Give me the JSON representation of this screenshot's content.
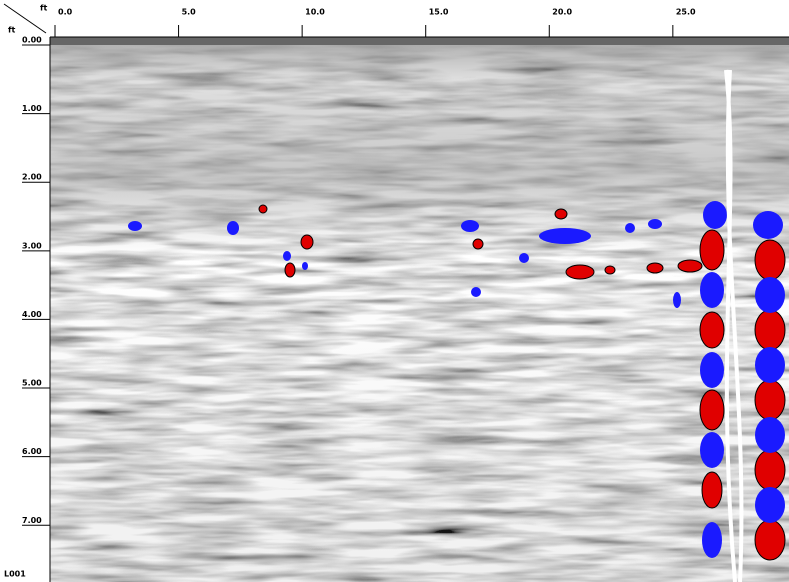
{
  "chart_data": {
    "type": "radargram",
    "x_unit": "ft",
    "y_unit": "ft",
    "line_label": "L001",
    "xlim": [
      0,
      29.7
    ],
    "ylim": [
      0,
      7.9
    ],
    "xticks": [
      {
        "value": 0,
        "label": "0.0"
      },
      {
        "value": 5,
        "label": "5.0"
      },
      {
        "value": 10,
        "label": "10.0"
      },
      {
        "value": 15,
        "label": "15.0"
      },
      {
        "value": 20,
        "label": "20.0"
      },
      {
        "value": 25,
        "label": "25.0"
      }
    ],
    "yticks": [
      {
        "value": 0,
        "label": "0.00"
      },
      {
        "value": 1,
        "label": "1.00"
      },
      {
        "value": 2,
        "label": "2.00"
      },
      {
        "value": 3,
        "label": "3.00"
      },
      {
        "value": 4,
        "label": "4.00"
      },
      {
        "value": 5,
        "label": "5.00"
      },
      {
        "value": 6,
        "label": "6.00"
      },
      {
        "value": 7,
        "label": "7.00"
      }
    ]
  }
}
